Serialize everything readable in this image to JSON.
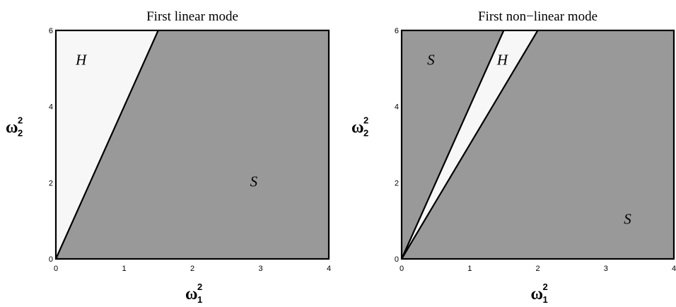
{
  "chart_data": [
    {
      "type": "area",
      "title": "First linear mode",
      "xlabel": {
        "base": "ω",
        "sub": "1",
        "sup": "2"
      },
      "ylabel": {
        "base": "ω",
        "sub": "2",
        "sup": "2"
      },
      "xlim": [
        0,
        4
      ],
      "ylim": [
        0,
        6
      ],
      "xticks": [
        "0",
        "1",
        "2",
        "3",
        "4"
      ],
      "yticks": [
        "0",
        "2",
        "4",
        "6"
      ],
      "colors": {
        "stable": "#999999",
        "unstable": "#f7f7f7"
      },
      "boundaries": [
        {
          "slope": 4
        }
      ],
      "regions": [
        {
          "label": "H",
          "kind": "unstable",
          "from_slope": 4,
          "to_slope": "inf",
          "label_at": [
            0.37,
            5.1
          ]
        },
        {
          "label": "S",
          "kind": "stable",
          "from_slope": 0,
          "to_slope": 4,
          "label_at": [
            2.9,
            1.9
          ]
        }
      ]
    },
    {
      "type": "area",
      "title": "First non−linear mode",
      "xlabel": {
        "base": "ω",
        "sub": "1",
        "sup": "2"
      },
      "ylabel": {
        "base": "ω",
        "sub": "2",
        "sup": "2"
      },
      "xlim": [
        0,
        4
      ],
      "ylim": [
        0,
        6
      ],
      "xticks": [
        "0",
        "1",
        "2",
        "3",
        "4"
      ],
      "yticks": [
        "0",
        "2",
        "4",
        "6"
      ],
      "colors": {
        "stable": "#999999",
        "unstable": "#f7f7f7"
      },
      "boundaries": [
        {
          "slope": 4
        },
        {
          "slope": 3
        }
      ],
      "regions": [
        {
          "label": "S",
          "kind": "stable",
          "from_slope": 4,
          "to_slope": "inf",
          "label_at": [
            0.43,
            5.1
          ]
        },
        {
          "label": "H",
          "kind": "unstable",
          "from_slope": 3,
          "to_slope": 4,
          "label_at": [
            1.48,
            5.1
          ]
        },
        {
          "label": "S",
          "kind": "stable",
          "from_slope": 0,
          "to_slope": 3,
          "label_at": [
            3.32,
            0.92
          ]
        }
      ]
    }
  ]
}
